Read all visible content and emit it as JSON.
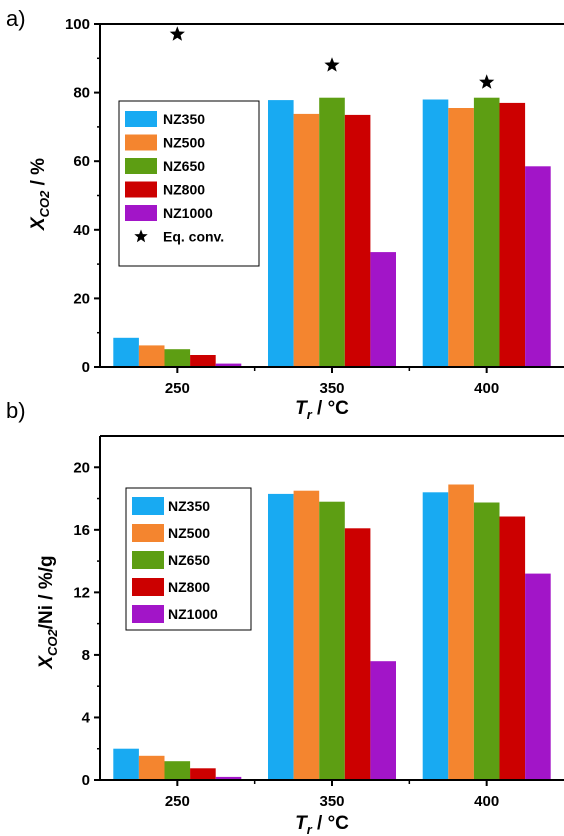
{
  "chart_data": [
    {
      "type": "bar",
      "panel_label": "a)",
      "categories": [
        "250",
        "350",
        "400"
      ],
      "series": [
        {
          "name": "NZ350",
          "color": "#18aaf2",
          "values": [
            8.5,
            77.8,
            78.0
          ]
        },
        {
          "name": "NZ500",
          "color": "#f4852f",
          "values": [
            6.3,
            73.8,
            75.5
          ]
        },
        {
          "name": "NZ650",
          "color": "#5d9e13",
          "values": [
            5.2,
            78.5,
            78.5
          ]
        },
        {
          "name": "NZ800",
          "color": "#cc0000",
          "values": [
            3.5,
            73.5,
            77.0
          ]
        },
        {
          "name": "NZ1000",
          "color": "#a215c8",
          "values": [
            1.0,
            33.5,
            58.5
          ]
        }
      ],
      "equilibrium": {
        "name": "Eq. conv.",
        "marker": "star",
        "values": [
          97.0,
          88.0,
          83.0
        ]
      },
      "ylabel_main": "X",
      "ylabel_sub": "CO2",
      "ylabel_rest": " / %",
      "xlabel_main": "T",
      "xlabel_sub": "r",
      "xlabel_rest": " / °C",
      "ylim": [
        0,
        100
      ],
      "yticks": [
        "0",
        "20",
        "40",
        "60",
        "80",
        "100"
      ],
      "legend_position": "left"
    },
    {
      "type": "bar",
      "panel_label": "b)",
      "categories": [
        "250",
        "350",
        "400"
      ],
      "series": [
        {
          "name": "NZ350",
          "color": "#18aaf2",
          "values": [
            2.0,
            18.3,
            18.4
          ]
        },
        {
          "name": "NZ500",
          "color": "#f4852f",
          "values": [
            1.55,
            18.5,
            18.9
          ]
        },
        {
          "name": "NZ650",
          "color": "#5d9e13",
          "values": [
            1.2,
            17.8,
            17.75
          ]
        },
        {
          "name": "NZ800",
          "color": "#cc0000",
          "values": [
            0.75,
            16.1,
            16.85
          ]
        },
        {
          "name": "NZ1000",
          "color": "#a215c8",
          "values": [
            0.2,
            7.6,
            13.2
          ]
        }
      ],
      "ylabel_main": "X",
      "ylabel_sub": "CO2",
      "ylabel_rest": "/Ni / %/g",
      "xlabel_main": "T",
      "xlabel_sub": "r",
      "xlabel_rest": " / °C",
      "ylim": [
        0,
        22
      ],
      "yticks": [
        "0",
        "4",
        "8",
        "12",
        "16",
        "20"
      ],
      "legend_position": "left"
    }
  ]
}
